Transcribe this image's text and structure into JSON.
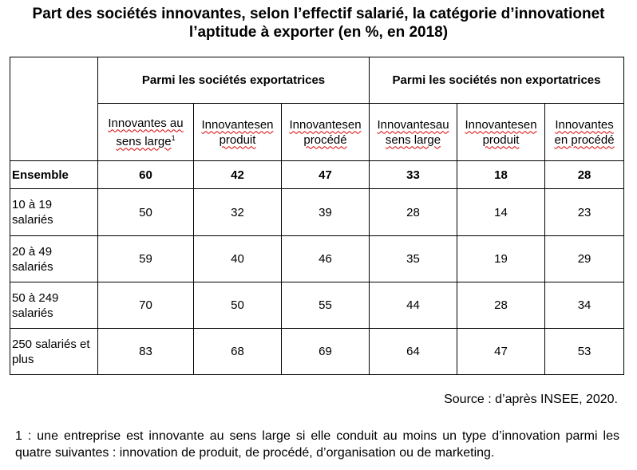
{
  "title_line1": "Part des sociétés innovantes, selon l’effectif salarié, la catégorie d’innovationet",
  "title_line2": "l’aptitude à exporter (en %, en 2018)",
  "groups": [
    "Parmi les sociétés exportatrices",
    "Parmi les sociétés non exportatrices"
  ],
  "columns": [
    {
      "l1": "Innovantes au",
      "l2": "sens large",
      "sup": "1"
    },
    {
      "l1": "Innovantesen",
      "l2": "produit"
    },
    {
      "l1": "Innovantesen",
      "l2": "procédé"
    },
    {
      "l1": "Innovantesau",
      "l2": "sens large"
    },
    {
      "l1": "Innovantesen",
      "l2": "produit"
    },
    {
      "l1": "Innovantes",
      "l2": "en procédé"
    }
  ],
  "rows": [
    {
      "label": "Ensemble",
      "values": [
        "60",
        "42",
        "47",
        "33",
        "18",
        "28"
      ]
    },
    {
      "label": "10 à 19 salariés",
      "values": [
        "50",
        "32",
        "39",
        "28",
        "14",
        "23"
      ]
    },
    {
      "label": "20 à 49 salariés",
      "values": [
        "59",
        "40",
        "46",
        "35",
        "19",
        "29"
      ]
    },
    {
      "label": "50 à 249 salariés",
      "values": [
        "70",
        "50",
        "55",
        "44",
        "28",
        "34"
      ]
    },
    {
      "label": "250 salariés et plus",
      "values": [
        "83",
        "68",
        "69",
        "64",
        "47",
        "53"
      ]
    }
  ],
  "source": "Source : d’après INSEE, 2020.",
  "footnote": "1 : une entreprise est innovante au sens large si elle conduit au moins un type d’innovation parmi les quatre suivantes : innovation de produit, de procédé, d’organisation ou de marketing."
}
